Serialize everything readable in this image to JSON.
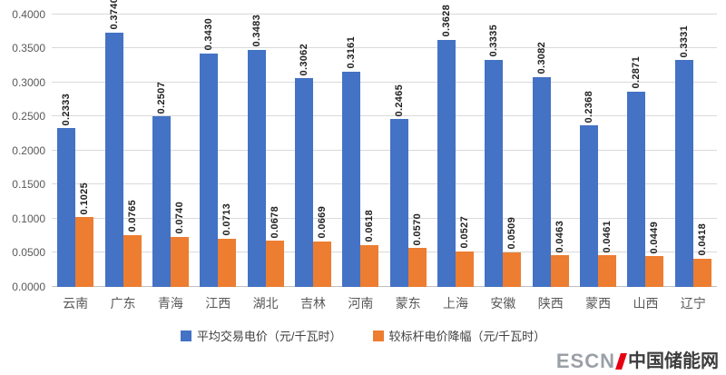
{
  "chart_data": {
    "type": "bar",
    "categories": [
      "云南",
      "广东",
      "青海",
      "江西",
      "湖北",
      "吉林",
      "河南",
      "蒙东",
      "上海",
      "安徽",
      "陕西",
      "蒙西",
      "山西",
      "辽宁"
    ],
    "series": [
      {
        "name": "平均交易电价（元/千瓦时）",
        "color": "#4472C4",
        "values": [
          0.2333,
          0.374,
          0.2507,
          0.343,
          0.3483,
          0.3062,
          0.3161,
          0.2465,
          0.3628,
          0.3335,
          0.3082,
          0.2368,
          0.2871,
          0.3331
        ]
      },
      {
        "name": "较标杆电价降幅（元/千瓦时）",
        "color": "#ED7D31",
        "values": [
          0.1025,
          0.0765,
          0.074,
          0.0713,
          0.0678,
          0.0669,
          0.0618,
          0.057,
          0.0527,
          0.0509,
          0.0463,
          0.0461,
          0.0449,
          0.0418
        ]
      }
    ],
    "ylim": [
      0,
      0.4
    ],
    "ytick_step": 0.05,
    "ytick_labels": [
      "0.0000",
      "0.0500",
      "0.1000",
      "0.1500",
      "0.2000",
      "0.2500",
      "0.3000",
      "0.3500",
      "0.4000"
    ],
    "value_label_decimals": 4,
    "grid": true,
    "legend_position": "bottom"
  },
  "watermark": {
    "prefix": "ESCN",
    "suffix": "中国储能网"
  }
}
